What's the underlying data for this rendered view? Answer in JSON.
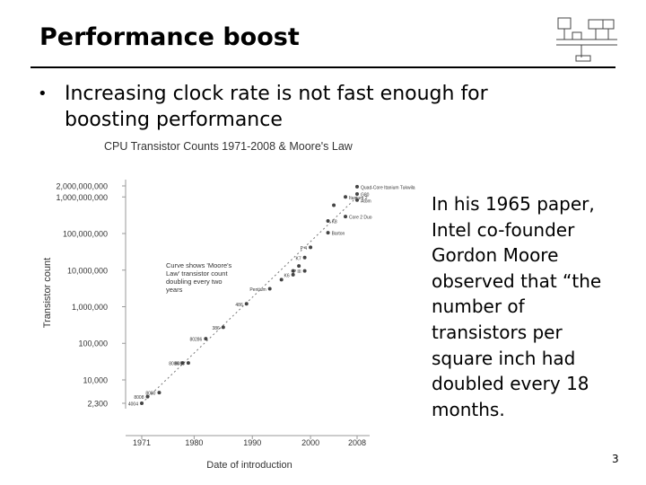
{
  "slide": {
    "title": "Performance boost",
    "bullet": "Increasing clock rate is not fast enough for boosting performance",
    "note": "In his 1965 paper, Intel co-founder Gordon Moore observed that “the number of transistors per square inch had doubled every 18 months.",
    "page_number": "3"
  },
  "logo_icon": "circuit-diagram-icon",
  "chart_data": {
    "type": "scatter",
    "title": "CPU Transistor Counts 1971-2008 & Moore's Law",
    "xlabel": "Date of introduction",
    "ylabel": "Transistor count",
    "x_ticks": [
      1971,
      1980,
      1990,
      2000,
      2008
    ],
    "y_ticks": [
      {
        "value": 2300,
        "label": "2,300"
      },
      {
        "value": 10000,
        "label": "10,000"
      },
      {
        "value": 100000,
        "label": "100,000"
      },
      {
        "value": 1000000,
        "label": "1,000,000"
      },
      {
        "value": 10000000,
        "label": "10,000,000"
      },
      {
        "value": 100000000,
        "label": "100,000,000"
      },
      {
        "value": 1000000000,
        "label": "1,000,000,000"
      },
      {
        "value": 2000000000,
        "label": "2,000,000,000"
      }
    ],
    "xlim": [
      1971,
      2008
    ],
    "ylim": [
      2300,
      2000000000
    ],
    "y_scale": "log",
    "annotation": "Curve shows 'Moore's Law' transistor count doubling every two years",
    "moores_law_line": [
      {
        "x": 1971,
        "y": 2300
      },
      {
        "x": 2008,
        "y": 1000000000
      }
    ],
    "points": [
      {
        "x": 1971,
        "y": 2300,
        "label": "4004"
      },
      {
        "x": 1972,
        "y": 3500,
        "label": "8008"
      },
      {
        "x": 1974,
        "y": 4500,
        "label": "8080"
      },
      {
        "x": 1978,
        "y": 29000,
        "label": "8086"
      },
      {
        "x": 1979,
        "y": 29000,
        "label": "8088"
      },
      {
        "x": 1982,
        "y": 134000,
        "label": "80286"
      },
      {
        "x": 1985,
        "y": 275000,
        "label": "386"
      },
      {
        "x": 1989,
        "y": 1200000,
        "label": "486"
      },
      {
        "x": 1993,
        "y": 3100000,
        "label": "Pentium"
      },
      {
        "x": 1995,
        "y": 5500000,
        "label": ""
      },
      {
        "x": 1997,
        "y": 7500000,
        "label": "K6"
      },
      {
        "x": 1997,
        "y": 9500000,
        "label": ""
      },
      {
        "x": 1999,
        "y": 9500000,
        "label": "P III"
      },
      {
        "x": 1998,
        "y": 13000000,
        "label": ""
      },
      {
        "x": 1999,
        "y": 22000000,
        "label": "K7"
      },
      {
        "x": 2000,
        "y": 42000000,
        "label": "P 4"
      },
      {
        "x": 2003,
        "y": 105000000,
        "label": "Barton"
      },
      {
        "x": 2003,
        "y": 220000000,
        "label": "K8"
      },
      {
        "x": 2004,
        "y": 592000000,
        "label": ""
      },
      {
        "x": 2006,
        "y": 291000000,
        "label": "Core 2 Duo"
      },
      {
        "x": 2006,
        "y": 1000000000,
        "label": "Itanium 2"
      },
      {
        "x": 2008,
        "y": 1900000000,
        "label": "Quad-Core Itanium Tukwila"
      },
      {
        "x": 2008,
        "y": 1200000000,
        "label": "G80"
      },
      {
        "x": 2008,
        "y": 820000000,
        "label": "Atom"
      }
    ]
  }
}
